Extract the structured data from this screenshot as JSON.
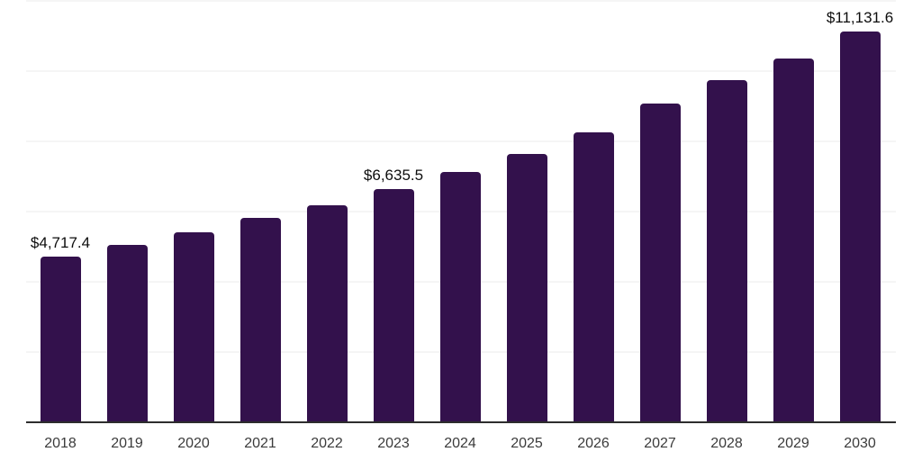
{
  "chart_data": {
    "type": "bar",
    "title": "",
    "xlabel": "",
    "ylabel": "",
    "categories": [
      "2018",
      "2019",
      "2020",
      "2021",
      "2022",
      "2023",
      "2024",
      "2025",
      "2026",
      "2027",
      "2028",
      "2029",
      "2030"
    ],
    "values": [
      4717.4,
      5040,
      5410,
      5830,
      6190,
      6635.5,
      7130,
      7650,
      8250,
      9080,
      9750,
      10360,
      11131.6
    ],
    "value_labels": [
      {
        "category": "2018",
        "text": "$4,717.4"
      },
      {
        "category": "2023",
        "text": "$6,635.5"
      },
      {
        "category": "2030",
        "text": "$11,131.6"
      }
    ],
    "ylim": [
      0,
      12000
    ],
    "gridline_values": [
      2000,
      4000,
      6000,
      8000,
      10000,
      12000
    ],
    "grid": true,
    "legend": false,
    "colors": {
      "bar": "#33114C",
      "axis_line": "#2D2D2D",
      "gridline": "#F5F5F5",
      "data_label": "#0D0D0D",
      "tick_label": "#3B3B3B",
      "background": "#FFFFFF"
    }
  }
}
